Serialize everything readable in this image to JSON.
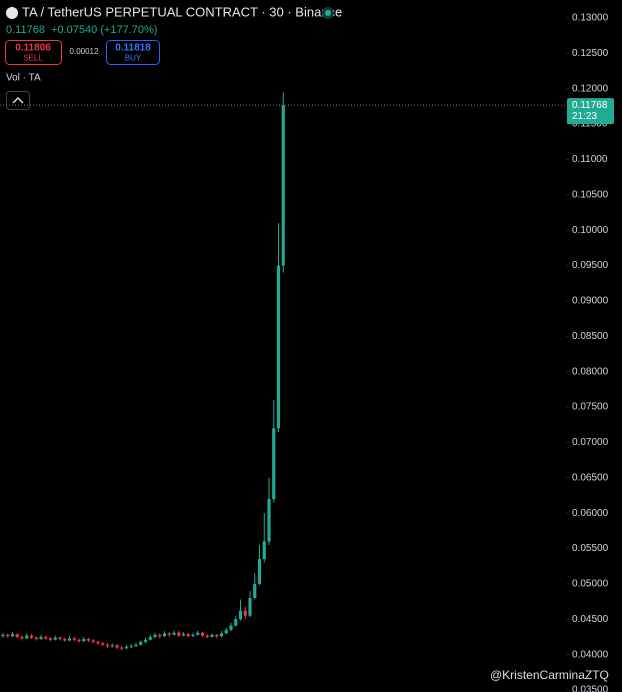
{
  "header": {
    "title": "TA / TetherUS PERPETUAL CONTRACT · 30 · Binance",
    "last": "0.11768",
    "change": "+0.07540 (+177.70%)",
    "sell_price": "0.11806",
    "sell": "SELL",
    "spread": "0.00012",
    "buy_price": "0.11818",
    "buy": "BUY",
    "volume_label": "Vol · TA",
    "watermark": "@KristenCarminaZTQ"
  },
  "chart_data": {
    "type": "candlestick",
    "up_color": "#22ab94",
    "down_color": "#f23645",
    "last_price": 0.11768,
    "countdown": "21:23",
    "ylim": [
      0.035,
      0.13
    ],
    "yticks": [
      {
        "value": 0.035,
        "label": "0.03500"
      },
      {
        "value": 0.04,
        "label": "0.04000"
      },
      {
        "value": 0.045,
        "label": "0.04500"
      },
      {
        "value": 0.05,
        "label": "0.05000"
      },
      {
        "value": 0.055,
        "label": "0.05500"
      },
      {
        "value": 0.06,
        "label": "0.06000"
      },
      {
        "value": 0.065,
        "label": "0.06500"
      },
      {
        "value": 0.07,
        "label": "0.07000"
      },
      {
        "value": 0.075,
        "label": "0.07500"
      },
      {
        "value": 0.08,
        "label": "0.08000"
      },
      {
        "value": 0.085,
        "label": "0.08500"
      },
      {
        "value": 0.09,
        "label": "0.09000"
      },
      {
        "value": 0.095,
        "label": "0.09500"
      },
      {
        "value": 0.1,
        "label": "0.10000"
      },
      {
        "value": 0.105,
        "label": "0.10500"
      },
      {
        "value": 0.11,
        "label": "0.11000"
      },
      {
        "value": 0.115,
        "label": "0.11500"
      },
      {
        "value": 0.12,
        "label": "0.12000"
      },
      {
        "value": 0.125,
        "label": "0.12500"
      },
      {
        "value": 0.13,
        "label": "0.13000"
      }
    ],
    "candles": [
      [
        0.0426,
        0.0431,
        0.0424,
        0.0428
      ],
      [
        0.0428,
        0.043,
        0.0424,
        0.0426
      ],
      [
        0.0426,
        0.0432,
        0.0425,
        0.0429
      ],
      [
        0.0429,
        0.043,
        0.0423,
        0.0425
      ],
      [
        0.0425,
        0.0427,
        0.042,
        0.0423
      ],
      [
        0.0423,
        0.043,
        0.0422,
        0.0427
      ],
      [
        0.0427,
        0.0429,
        0.0422,
        0.0424
      ],
      [
        0.0424,
        0.0426,
        0.042,
        0.0422
      ],
      [
        0.0422,
        0.0428,
        0.0421,
        0.0425
      ],
      [
        0.0425,
        0.0427,
        0.0421,
        0.0423
      ],
      [
        0.0423,
        0.0425,
        0.0419,
        0.0421
      ],
      [
        0.0421,
        0.0427,
        0.042,
        0.0424
      ],
      [
        0.0424,
        0.0426,
        0.042,
        0.0422
      ],
      [
        0.0422,
        0.0424,
        0.0418,
        0.042
      ],
      [
        0.042,
        0.0426,
        0.0419,
        0.0423
      ],
      [
        0.0423,
        0.0425,
        0.0419,
        0.0421
      ],
      [
        0.0421,
        0.0423,
        0.0417,
        0.0419
      ],
      [
        0.0419,
        0.0425,
        0.0418,
        0.0422
      ],
      [
        0.0422,
        0.0424,
        0.0418,
        0.042
      ],
      [
        0.042,
        0.0422,
        0.0416,
        0.0418
      ],
      [
        0.0418,
        0.042,
        0.0414,
        0.0416
      ],
      [
        0.0416,
        0.0418,
        0.0412,
        0.0414
      ],
      [
        0.0414,
        0.0416,
        0.0409,
        0.0412
      ],
      [
        0.0412,
        0.0416,
        0.041,
        0.0413
      ],
      [
        0.0413,
        0.0415,
        0.0408,
        0.041
      ],
      [
        0.041,
        0.0412,
        0.0406,
        0.0409
      ],
      [
        0.0409,
        0.0414,
        0.0408,
        0.0411
      ],
      [
        0.0411,
        0.0415,
        0.0409,
        0.0412
      ],
      [
        0.0412,
        0.0417,
        0.0411,
        0.0414
      ],
      [
        0.0414,
        0.042,
        0.0413,
        0.0418
      ],
      [
        0.0418,
        0.0424,
        0.0416,
        0.0421
      ],
      [
        0.0421,
        0.0428,
        0.042,
        0.0425
      ],
      [
        0.0425,
        0.0431,
        0.0423,
        0.0428
      ],
      [
        0.0428,
        0.043,
        0.0423,
        0.0426
      ],
      [
        0.0426,
        0.0433,
        0.0425,
        0.043
      ],
      [
        0.043,
        0.0432,
        0.0425,
        0.0428
      ],
      [
        0.0428,
        0.0434,
        0.0427,
        0.0431
      ],
      [
        0.0431,
        0.0433,
        0.0425,
        0.0427
      ],
      [
        0.0427,
        0.0432,
        0.0426,
        0.0429
      ],
      [
        0.0429,
        0.0431,
        0.0424,
        0.0426
      ],
      [
        0.0426,
        0.0431,
        0.0425,
        0.0428
      ],
      [
        0.0428,
        0.0434,
        0.0427,
        0.0431
      ],
      [
        0.0431,
        0.0432,
        0.0425,
        0.0427
      ],
      [
        0.0427,
        0.0429,
        0.0423,
        0.0425
      ],
      [
        0.0425,
        0.043,
        0.0424,
        0.0428
      ],
      [
        0.0428,
        0.0429,
        0.0423,
        0.0426
      ],
      [
        0.0426,
        0.0433,
        0.0425,
        0.043
      ],
      [
        0.043,
        0.0438,
        0.0429,
        0.0435
      ],
      [
        0.0435,
        0.0445,
        0.0433,
        0.0441
      ],
      [
        0.0441,
        0.0455,
        0.044,
        0.045
      ],
      [
        0.045,
        0.0478,
        0.0448,
        0.0462
      ],
      [
        0.0462,
        0.0468,
        0.045,
        0.0455
      ],
      [
        0.0455,
        0.049,
        0.0453,
        0.048
      ],
      [
        0.048,
        0.0515,
        0.0478,
        0.05
      ],
      [
        0.05,
        0.0555,
        0.0498,
        0.0535
      ],
      [
        0.0535,
        0.06,
        0.053,
        0.056
      ],
      [
        0.056,
        0.065,
        0.0555,
        0.062
      ],
      [
        0.062,
        0.076,
        0.0615,
        0.072
      ],
      [
        0.072,
        0.101,
        0.0715,
        0.095
      ],
      [
        0.095,
        0.1195,
        0.094,
        0.11768
      ]
    ]
  }
}
